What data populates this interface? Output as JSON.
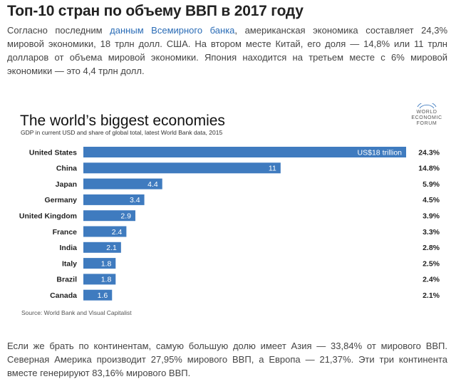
{
  "article": {
    "title": "Топ-10 стран по объему ВВП в 2017 году",
    "intro_before_link": "Согласно последним ",
    "intro_link": "данным Всемирного банка",
    "intro_after_link": ", американская экономика составляет 24,3% мировой экономики, 18 трлн долл. США. На втором месте Китай, его доля — 14,8% или 11 трлн долларов от объема мировой экономики. Япония находится на третьем месте с 6% мировой экономики — это 4,4 трлн долл.",
    "outro": "Если же брать по континентам, самую большую долю имеет Азия — 33,84% от мирового ВВП. Северная Америка производит 27,95% мирового ВВП, а Европа — 21,37%. Эти три континента вместе генерируют 83,16% мирового ВВП."
  },
  "logo": {
    "lines": [
      "WORLD",
      "ECONOMIC",
      "FORUM"
    ]
  },
  "colors": {
    "bar": "#3f7bbf",
    "bar_text": "#ffffff"
  },
  "chart_data": {
    "type": "bar",
    "orientation": "horizontal",
    "title": "The world’s biggest economies",
    "subtitle": "GDP in current USD and share of global total, latest World Bank data, 2015",
    "source": "Source: World Bank and Visual Capitalist",
    "unit": "trillion USD",
    "categories": [
      "United States",
      "China",
      "Japan",
      "Germany",
      "United Kingdom",
      "France",
      "India",
      "Italy",
      "Brazil",
      "Canada"
    ],
    "values": [
      18,
      11,
      4.4,
      3.4,
      2.9,
      2.4,
      2.1,
      1.8,
      1.8,
      1.6
    ],
    "value_labels": [
      "US$18 trillion",
      "11",
      "4.4",
      "3.4",
      "2.9",
      "2.4",
      "2.1",
      "1.8",
      "1.8",
      "1.6"
    ],
    "shares": [
      "24.3%",
      "14.8%",
      "5.9%",
      "4.5%",
      "3.9%",
      "3.3%",
      "2.8%",
      "2.5%",
      "2.4%",
      "2.1%"
    ],
    "xlim": [
      0,
      18
    ]
  }
}
